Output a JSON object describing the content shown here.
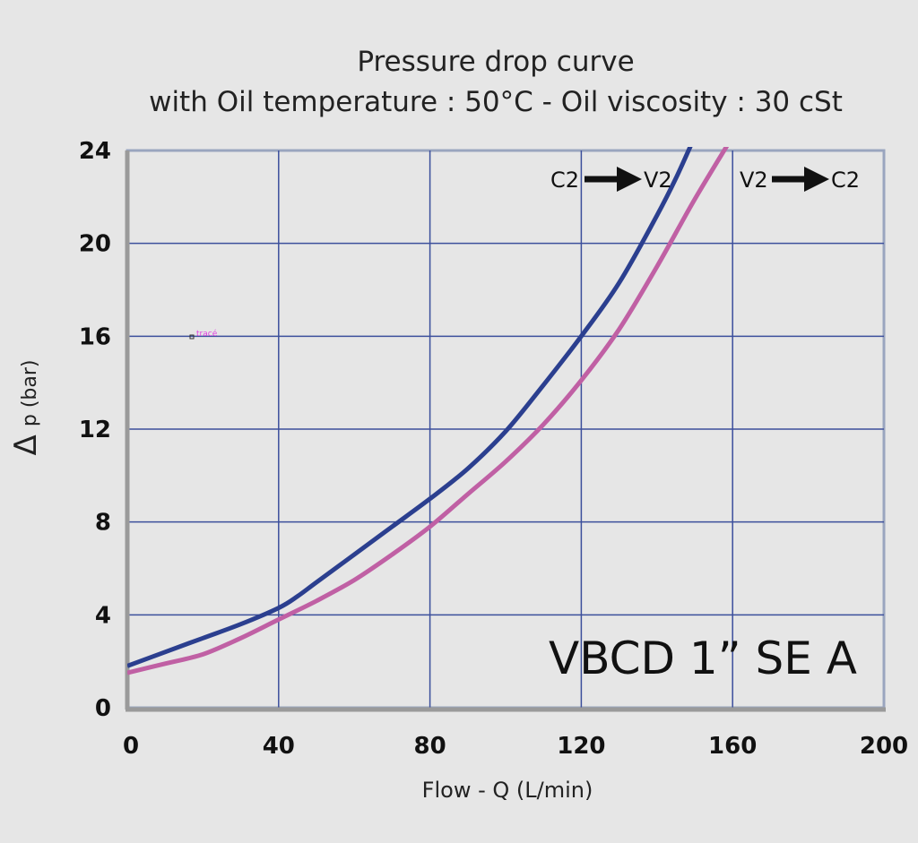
{
  "chart_data": {
    "type": "line",
    "title": "Pressure drop curve",
    "subtitle": "with Oil temperature :  50°C - Oil viscosity : 30 cSt",
    "xlabel": "Flow - Q (L/min)",
    "ylabel_symbol": "Δ",
    "ylabel": "p (bar)",
    "xlim": [
      0,
      200
    ],
    "ylim": [
      0,
      24
    ],
    "xticks": [
      0,
      40,
      80,
      120,
      160,
      200
    ],
    "yticks": [
      0,
      4,
      8,
      12,
      16,
      20,
      24
    ],
    "grid": true,
    "series": [
      {
        "name": "C2 → V2",
        "color": "#2b3f8f",
        "x": [
          0,
          10,
          20,
          30,
          40,
          45,
          50,
          60,
          70,
          80,
          90,
          100,
          110,
          120,
          130,
          140,
          145,
          150
        ],
        "y": [
          1.8,
          2.4,
          3.0,
          3.6,
          4.3,
          4.8,
          5.4,
          6.6,
          7.8,
          9.0,
          10.3,
          11.9,
          13.9,
          16.0,
          18.3,
          21.2,
          22.8,
          24.6
        ]
      },
      {
        "name": "V2 → C2",
        "color": "#c060a4",
        "x": [
          0,
          10,
          20,
          30,
          40,
          50,
          60,
          70,
          80,
          90,
          100,
          110,
          120,
          130,
          140,
          150,
          160
        ],
        "y": [
          1.5,
          1.9,
          2.3,
          3.0,
          3.8,
          4.6,
          5.5,
          6.6,
          7.8,
          9.2,
          10.6,
          12.2,
          14.1,
          16.3,
          19.0,
          21.9,
          24.6
        ]
      }
    ],
    "legend": {
      "c2v2": {
        "from": "C2",
        "to": "V2"
      },
      "v2c2": {
        "from": "V2",
        "to": "C2"
      }
    },
    "annotations": {
      "model": "VBCD 1” SE A",
      "trace_label": "tracé"
    }
  }
}
